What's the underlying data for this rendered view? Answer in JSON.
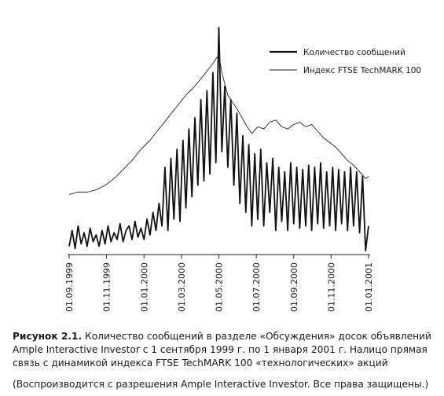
{
  "chart_data": {
    "type": "line",
    "x_ticks": [
      "01.09.1999",
      "01.11.1999",
      "01.01.2000",
      "01.03.2000",
      "01.05.2000",
      "01.07.2000",
      "01.09.2000",
      "01.11.2000",
      "01.01.2001"
    ],
    "legend_position": "top-right",
    "grid": false,
    "series": [
      {
        "name": "Количество сообщений",
        "style": "thick",
        "color": "#111111",
        "points": [
          [
            0,
            0.03
          ],
          [
            1,
            0.1
          ],
          [
            2,
            0.02
          ],
          [
            3,
            0.12
          ],
          [
            4,
            0.04
          ],
          [
            5,
            0.09
          ],
          [
            6,
            0.03
          ],
          [
            7,
            0.11
          ],
          [
            8,
            0.05
          ],
          [
            9,
            0.08
          ],
          [
            10,
            0.03
          ],
          [
            11,
            0.1
          ],
          [
            12,
            0.04
          ],
          [
            13,
            0.12
          ],
          [
            14,
            0.05
          ],
          [
            15,
            0.09
          ],
          [
            16,
            0.06
          ],
          [
            17,
            0.13
          ],
          [
            18,
            0.05
          ],
          [
            19,
            0.1
          ],
          [
            20,
            0.12
          ],
          [
            21,
            0.06
          ],
          [
            22,
            0.14
          ],
          [
            23,
            0.07
          ],
          [
            24,
            0.11
          ],
          [
            25,
            0.06
          ],
          [
            26,
            0.15
          ],
          [
            27,
            0.08
          ],
          [
            28,
            0.18
          ],
          [
            29,
            0.1
          ],
          [
            30,
            0.22
          ],
          [
            31,
            0.12
          ],
          [
            32,
            0.38
          ],
          [
            33,
            0.1
          ],
          [
            34,
            0.42
          ],
          [
            35,
            0.15
          ],
          [
            36,
            0.46
          ],
          [
            37,
            0.14
          ],
          [
            38,
            0.5
          ],
          [
            39,
            0.2
          ],
          [
            40,
            0.55
          ],
          [
            41,
            0.25
          ],
          [
            42,
            0.6
          ],
          [
            43,
            0.3
          ],
          [
            44,
            0.68
          ],
          [
            45,
            0.32
          ],
          [
            46,
            0.72
          ],
          [
            47,
            0.35
          ],
          [
            48,
            0.8
          ],
          [
            49,
            0.4
          ],
          [
            50,
            1.0
          ],
          [
            51,
            0.45
          ],
          [
            52,
            0.74
          ],
          [
            53,
            0.38
          ],
          [
            54,
            0.68
          ],
          [
            55,
            0.3
          ],
          [
            56,
            0.62
          ],
          [
            57,
            0.22
          ],
          [
            58,
            0.52
          ],
          [
            59,
            0.18
          ],
          [
            60,
            0.48
          ],
          [
            61,
            0.12
          ],
          [
            62,
            0.44
          ],
          [
            63,
            0.15
          ],
          [
            64,
            0.46
          ],
          [
            65,
            0.12
          ],
          [
            66,
            0.4
          ],
          [
            67,
            0.18
          ],
          [
            68,
            0.42
          ],
          [
            69,
            0.1
          ],
          [
            70,
            0.38
          ],
          [
            71,
            0.14
          ],
          [
            72,
            0.36
          ],
          [
            73,
            0.1
          ],
          [
            74,
            0.4
          ],
          [
            75,
            0.13
          ],
          [
            76,
            0.38
          ],
          [
            77,
            0.11
          ],
          [
            78,
            0.37
          ],
          [
            79,
            0.12
          ],
          [
            80,
            0.39
          ],
          [
            81,
            0.1
          ],
          [
            82,
            0.38
          ],
          [
            83,
            0.13
          ],
          [
            84,
            0.4
          ],
          [
            85,
            0.11
          ],
          [
            86,
            0.36
          ],
          [
            87,
            0.12
          ],
          [
            88,
            0.38
          ],
          [
            89,
            0.1
          ],
          [
            90,
            0.37
          ],
          [
            91,
            0.13
          ],
          [
            92,
            0.36
          ],
          [
            93,
            0.1
          ],
          [
            94,
            0.38
          ],
          [
            95,
            0.12
          ],
          [
            96,
            0.36
          ],
          [
            97,
            0.09
          ],
          [
            98,
            0.34
          ],
          [
            99,
            0.01
          ],
          [
            100,
            0.12
          ]
        ]
      },
      {
        "name": "Индекс FTSE TechMARK 100",
        "style": "thin",
        "color": "#222222",
        "points": [
          [
            0,
            0.26
          ],
          [
            3,
            0.27
          ],
          [
            6,
            0.27
          ],
          [
            9,
            0.28
          ],
          [
            12,
            0.3
          ],
          [
            15,
            0.33
          ],
          [
            18,
            0.37
          ],
          [
            21,
            0.41
          ],
          [
            24,
            0.46
          ],
          [
            27,
            0.5
          ],
          [
            30,
            0.55
          ],
          [
            33,
            0.6
          ],
          [
            36,
            0.65
          ],
          [
            39,
            0.7
          ],
          [
            42,
            0.74
          ],
          [
            45,
            0.79
          ],
          [
            48,
            0.84
          ],
          [
            50,
            0.88
          ],
          [
            51,
            0.8
          ],
          [
            53,
            0.7
          ],
          [
            56,
            0.64
          ],
          [
            59,
            0.57
          ],
          [
            61,
            0.53
          ],
          [
            63,
            0.56
          ],
          [
            65,
            0.55
          ],
          [
            67,
            0.58
          ],
          [
            69,
            0.59
          ],
          [
            71,
            0.56
          ],
          [
            73,
            0.55
          ],
          [
            75,
            0.57
          ],
          [
            77,
            0.58
          ],
          [
            79,
            0.56
          ],
          [
            81,
            0.57
          ],
          [
            83,
            0.54
          ],
          [
            85,
            0.51
          ],
          [
            87,
            0.49
          ],
          [
            89,
            0.47
          ],
          [
            91,
            0.44
          ],
          [
            93,
            0.41
          ],
          [
            95,
            0.39
          ],
          [
            97,
            0.36
          ],
          [
            99,
            0.33
          ],
          [
            100,
            0.34
          ]
        ]
      }
    ]
  },
  "caption": {
    "figure_label": "Рисунок 2.1.",
    "line1": " Количество сообщений в разделе «Обсуждения» досок объявлений",
    "line2": "Ample Interactive Investor с 1 сентября 1999 г. по 1 января 2001 г. Налицо прямая",
    "line3": "связь с динамикой индекса FTSE TechMARK 100 «технологических» акций"
  },
  "credit": "(Воспроизводится с разрешения Ample Interactive Investor. Все права защищены.)"
}
